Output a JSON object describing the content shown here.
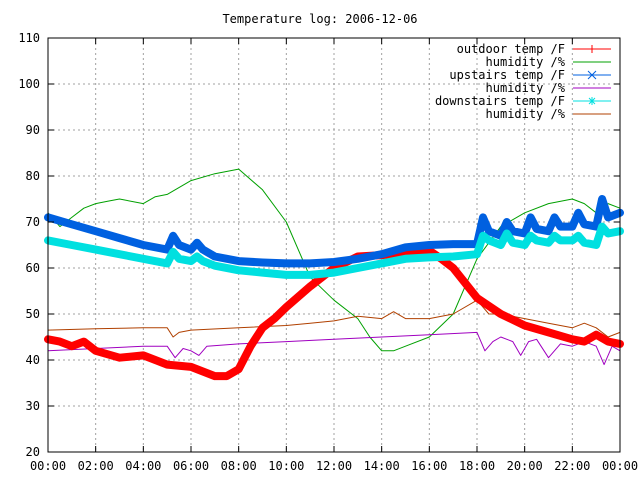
{
  "chart_data": {
    "type": "line",
    "title": "Temperature log: 2006-12-06",
    "xlabel": "",
    "ylabel": "",
    "x_unit": "time of day",
    "xlim": [
      "00:00",
      "24:00"
    ],
    "ylim": [
      20,
      110
    ],
    "x_ticks": [
      "00:00",
      "02:00",
      "04:00",
      "06:00",
      "08:00",
      "10:00",
      "12:00",
      "14:00",
      "16:00",
      "18:00",
      "20:00",
      "22:00",
      "00:00"
    ],
    "y_ticks": [
      20,
      30,
      40,
      50,
      60,
      70,
      80,
      90,
      100,
      110
    ],
    "grid": true,
    "legend_position": "top-right",
    "series": [
      {
        "name": "outdoor temp /F",
        "color": "#ff0000",
        "marker": "plus",
        "x": [
          "00:00",
          "00:30",
          "01:00",
          "01:30",
          "02:00",
          "03:00",
          "04:00",
          "04:30",
          "05:00",
          "06:00",
          "07:00",
          "07:30",
          "08:00",
          "08:30",
          "09:00",
          "09:30",
          "10:00",
          "11:00",
          "12:00",
          "13:00",
          "14:00",
          "15:00",
          "16:00",
          "16:30",
          "17:00",
          "18:00",
          "19:00",
          "20:00",
          "21:00",
          "22:00",
          "22:30",
          "23:00",
          "23:30",
          "24:00"
        ],
        "y": [
          44.5,
          44,
          43,
          44,
          42,
          40.5,
          41,
          40,
          39,
          38.5,
          36.5,
          36.5,
          38,
          43,
          47,
          49,
          51.5,
          56,
          60,
          62.5,
          62.8,
          63.2,
          63.8,
          62,
          60,
          53.5,
          50,
          47.5,
          46,
          44.5,
          44,
          45.5,
          44,
          43.5
        ]
      },
      {
        "name": "humidity /%",
        "color": "#00a000",
        "marker": "none",
        "x": [
          "00:00",
          "00:30",
          "01:00",
          "01:30",
          "02:00",
          "02:30",
          "03:00",
          "04:00",
          "04:30",
          "05:00",
          "06:00",
          "07:00",
          "08:00",
          "09:00",
          "10:00",
          "11:00",
          "12:00",
          "13:00",
          "13:30",
          "14:00",
          "14:30",
          "15:00",
          "16:00",
          "17:00",
          "18:00",
          "19:00",
          "20:00",
          "21:00",
          "22:00",
          "22:30",
          "23:00",
          "23:30",
          "24:00"
        ],
        "y": [
          72,
          69,
          71,
          73,
          74,
          74.5,
          75,
          74,
          75.5,
          76,
          79,
          80.5,
          81.5,
          77,
          70,
          58,
          53,
          49,
          45,
          42,
          42,
          43,
          45,
          50,
          62,
          69,
          72,
          74,
          75,
          74,
          72,
          74,
          73
        ]
      },
      {
        "name": "upstairs temp /F",
        "color": "#0060e0",
        "marker": "cross",
        "x": [
          "00:00",
          "01:00",
          "02:00",
          "03:00",
          "04:00",
          "05:00",
          "05:15",
          "05:30",
          "06:00",
          "06:15",
          "06:30",
          "07:00",
          "08:00",
          "09:00",
          "10:00",
          "11:00",
          "12:00",
          "13:00",
          "14:00",
          "15:00",
          "16:00",
          "17:00",
          "18:00",
          "18:15",
          "18:30",
          "19:00",
          "19:15",
          "19:30",
          "20:00",
          "20:15",
          "20:30",
          "21:00",
          "21:15",
          "21:30",
          "22:00",
          "22:15",
          "22:30",
          "23:00",
          "23:15",
          "23:30",
          "24:00"
        ],
        "y": [
          71,
          69.5,
          68,
          66.5,
          65,
          64,
          67,
          65,
          64,
          65.5,
          64,
          62.5,
          61.5,
          61.2,
          61,
          61,
          61.3,
          62,
          63,
          64.5,
          65,
          65.2,
          65.2,
          71,
          68,
          67,
          70,
          68,
          67.5,
          71,
          68.5,
          68,
          71,
          69,
          69,
          72,
          69.5,
          69,
          75,
          71,
          72
        ]
      },
      {
        "name": "humidity /%",
        "color": "#a000c0",
        "marker": "none",
        "x": [
          "00:00",
          "02:00",
          "04:00",
          "05:00",
          "05:20",
          "05:40",
          "06:00",
          "06:20",
          "06:40",
          "08:00",
          "10:00",
          "12:00",
          "14:00",
          "16:00",
          "18:00",
          "18:20",
          "18:40",
          "19:00",
          "19:30",
          "19:50",
          "20:10",
          "20:30",
          "21:00",
          "21:30",
          "22:00",
          "22:30",
          "23:00",
          "23:20",
          "23:40",
          "24:00"
        ],
        "y": [
          42,
          42.5,
          43,
          43,
          40.5,
          42.5,
          42,
          41,
          43,
          43.5,
          44,
          44.5,
          45,
          45.5,
          46,
          42,
          44,
          45,
          44,
          41,
          44,
          44.5,
          40.5,
          43.5,
          43,
          44,
          43,
          39,
          43,
          42
        ]
      },
      {
        "name": "downstairs temp /F",
        "color": "#00e0e0",
        "marker": "star",
        "x": [
          "00:00",
          "01:00",
          "02:00",
          "03:00",
          "04:00",
          "05:00",
          "05:15",
          "05:30",
          "06:00",
          "06:15",
          "06:30",
          "07:00",
          "08:00",
          "09:00",
          "10:00",
          "11:00",
          "12:00",
          "13:00",
          "14:00",
          "15:00",
          "16:00",
          "17:00",
          "18:00",
          "18:15",
          "18:30",
          "19:00",
          "19:15",
          "19:30",
          "20:00",
          "20:15",
          "20:30",
          "21:00",
          "21:15",
          "21:30",
          "22:00",
          "22:15",
          "22:30",
          "23:00",
          "23:15",
          "23:30",
          "24:00"
        ],
        "y": [
          66,
          65,
          64,
          63,
          62,
          61,
          63.5,
          62,
          61.5,
          62.5,
          61.5,
          60.5,
          59.5,
          59,
          58.5,
          58.5,
          59,
          60,
          61,
          62,
          62.3,
          62.5,
          63,
          67,
          66,
          65,
          67.5,
          65.5,
          65,
          67,
          66,
          65.5,
          67,
          66,
          66,
          67,
          65.5,
          65,
          69,
          67.5,
          68
        ]
      },
      {
        "name": "humidity /%",
        "color": "#b04000",
        "marker": "none",
        "x": [
          "00:00",
          "02:00",
          "04:00",
          "05:00",
          "05:15",
          "05:30",
          "06:00",
          "08:00",
          "10:00",
          "11:00",
          "12:00",
          "13:00",
          "14:00",
          "14:30",
          "15:00",
          "16:00",
          "17:00",
          "18:00",
          "18:30",
          "19:00",
          "20:00",
          "21:00",
          "22:00",
          "22:30",
          "23:00",
          "23:30",
          "24:00"
        ],
        "y": [
          46.5,
          46.8,
          47,
          47,
          45,
          46,
          46.5,
          47,
          47.5,
          48,
          48.5,
          49.5,
          49,
          50.5,
          49,
          49,
          50,
          53,
          50,
          50,
          49,
          48,
          47,
          48,
          47,
          45,
          46
        ]
      }
    ]
  }
}
